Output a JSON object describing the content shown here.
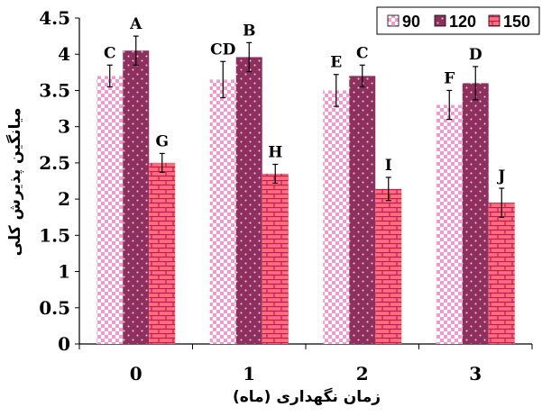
{
  "chart_data": {
    "type": "bar",
    "categories": [
      "0",
      "1",
      "2",
      "3"
    ],
    "series": [
      {
        "name": "90",
        "values": [
          3.7,
          3.65,
          3.5,
          3.3
        ],
        "errors": [
          0.15,
          0.25,
          0.22,
          0.2
        ],
        "labels": [
          "C",
          "CD",
          "E",
          "F"
        ],
        "color": "#f29ad0",
        "pattern": "checker"
      },
      {
        "name": "120",
        "values": [
          4.05,
          3.96,
          3.7,
          3.6
        ],
        "errors": [
          0.2,
          0.2,
          0.15,
          0.23
        ],
        "labels": [
          "A",
          "B",
          "C",
          "D"
        ],
        "color": "#8f2f5e",
        "pattern": "dots"
      },
      {
        "name": "150",
        "values": [
          2.5,
          2.35,
          2.14,
          1.95
        ],
        "errors": [
          0.13,
          0.13,
          0.16,
          0.2
        ],
        "labels": [
          "G",
          "H",
          "I",
          "J"
        ],
        "color": "#ff6f7a",
        "pattern": "brick"
      }
    ],
    "title": "",
    "xlabel": "زمان نگهداری (ماه)",
    "ylabel": "میانگین پذیرش کلی",
    "ylim": [
      0,
      4.5
    ],
    "yticks": [
      "0",
      "0.5",
      "1",
      "1.5",
      "2",
      "2.5",
      "3",
      "3.5",
      "4",
      "4.5"
    ],
    "grid": false,
    "legend_position": "top-right"
  }
}
